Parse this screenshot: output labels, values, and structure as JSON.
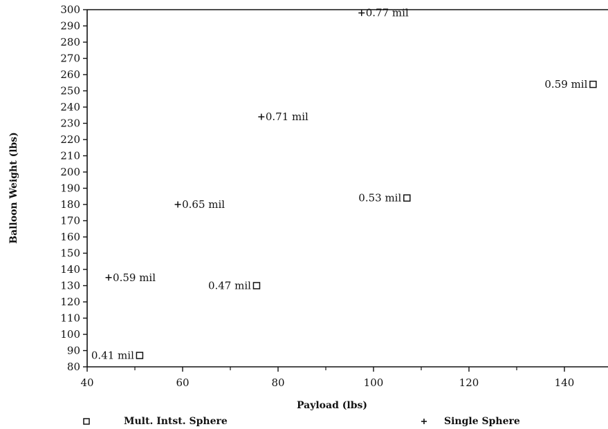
{
  "chart_data": {
    "type": "scatter",
    "title": "",
    "xlabel": "Payload (lbs)",
    "ylabel": "Balloon Weight (lbs)",
    "xlim": [
      40,
      150
    ],
    "ylim": [
      80,
      300
    ],
    "xticks": [
      40,
      60,
      80,
      100,
      120,
      140
    ],
    "yticks": [
      80,
      90,
      100,
      110,
      120,
      130,
      140,
      150,
      160,
      170,
      180,
      190,
      200,
      210,
      220,
      230,
      240,
      250,
      260,
      270,
      280,
      290,
      300
    ],
    "grid": false,
    "legend_position": "bottom",
    "series": [
      {
        "name": "Mult. Intst. Sphere",
        "marker": "square",
        "points": [
          {
            "x": 51,
            "y": 87,
            "label": "0.41 mil"
          },
          {
            "x": 75.5,
            "y": 130,
            "label": "0.47 mil"
          },
          {
            "x": 107,
            "y": 184,
            "label": "0.53 mil"
          },
          {
            "x": 146,
            "y": 254,
            "label": "0.59 mil"
          }
        ]
      },
      {
        "name": "Single Sphere",
        "marker": "plus",
        "points": [
          {
            "x": 44.5,
            "y": 135,
            "label": "0.59 mil"
          },
          {
            "x": 59,
            "y": 180,
            "label": "0.65 mil"
          },
          {
            "x": 76.5,
            "y": 234,
            "label": "0.71 mil"
          },
          {
            "x": 97.5,
            "y": 298,
            "label": "0.77 mil"
          }
        ]
      }
    ]
  }
}
